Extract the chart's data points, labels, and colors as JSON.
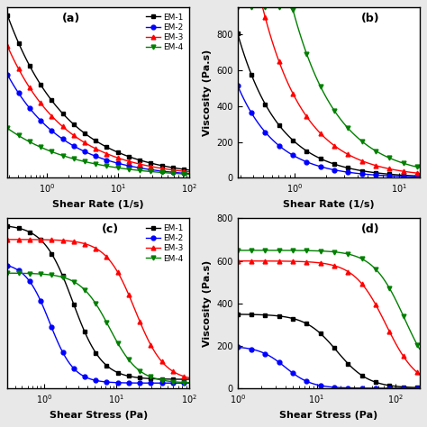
{
  "series": [
    "EM-1",
    "EM-2",
    "EM-3",
    "EM-4"
  ],
  "colors": [
    "black",
    "blue",
    "red",
    "green"
  ],
  "markers": [
    "s",
    "o",
    "^",
    "v"
  ],
  "panel_labels": [
    "(a)",
    "(b)",
    "(c)",
    "(d)"
  ],
  "xlabel_ab": "Shear Rate (1/s)",
  "xlabel_cd": "Shear Stress (Pa)",
  "ylabel_vis": "Viscosity (Pa.s)",
  "fig_bg": "#e8e8e8",
  "ax_bg": "white"
}
